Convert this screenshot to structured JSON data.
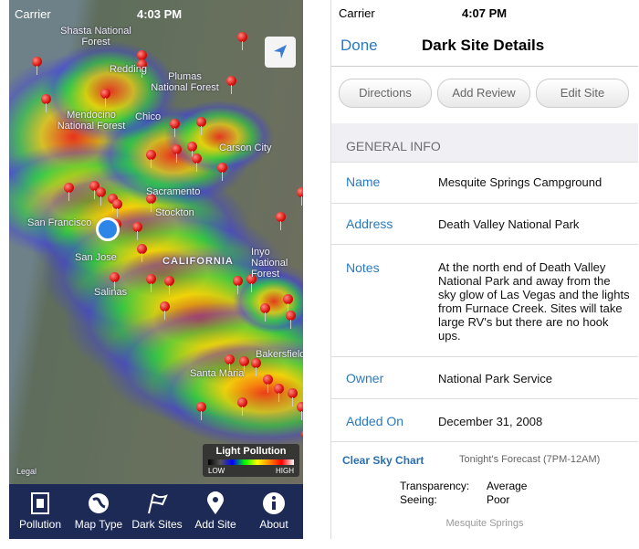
{
  "left_screen": {
    "status_bar": {
      "carrier": "Carrier",
      "time": "4:03 PM"
    },
    "map_labels": [
      "Shasta National Forest",
      "Redding",
      "Plumas National Forest",
      "Mendocino National Forest",
      "Chico",
      "Carson City",
      "Sacramento",
      "San Francisco",
      "Stockton",
      "San Jose",
      "CALIFORNIA",
      "Inyo National Forest",
      "Salinas",
      "Bakersfield",
      "Santa Maria"
    ],
    "legend": {
      "title": "Light Pollution",
      "low": "LOW",
      "high": "HIGH"
    },
    "legal": "Legal",
    "tabs": [
      "Pollution",
      "Map Type",
      "Dark Sites",
      "Add Site",
      "About"
    ]
  },
  "right_screen": {
    "status_bar": {
      "carrier": "Carrier",
      "time": "4:07 PM"
    },
    "nav": {
      "back": "Done",
      "title": "Dark Site Details"
    },
    "buttons": [
      "Directions",
      "Add Review",
      "Edit Site"
    ],
    "section": "GENERAL INFO",
    "fields": [
      {
        "label": "Name",
        "value": "Mesquite Springs Campground"
      },
      {
        "label": "Address",
        "value": "Death Valley National Park"
      },
      {
        "label": "Notes",
        "value": "At the north end of Death Valley National Park and away from the sky glow of Las Vegas and the lights from Furnace Creek. Sites will take large RV's but there are no hook ups."
      },
      {
        "label": "Owner",
        "value": "National Park Service"
      },
      {
        "label": "Added On",
        "value": "December 31, 2008"
      }
    ],
    "clear_sky_chart": {
      "title": "Clear Sky Chart",
      "forecast": "Tonight's Forecast (7PM-12AM)",
      "rows": [
        {
          "label": "Transparency:",
          "value": "Average"
        },
        {
          "label": "Seeing:",
          "value": "Poor"
        }
      ],
      "site": "Mesquite Springs"
    }
  }
}
